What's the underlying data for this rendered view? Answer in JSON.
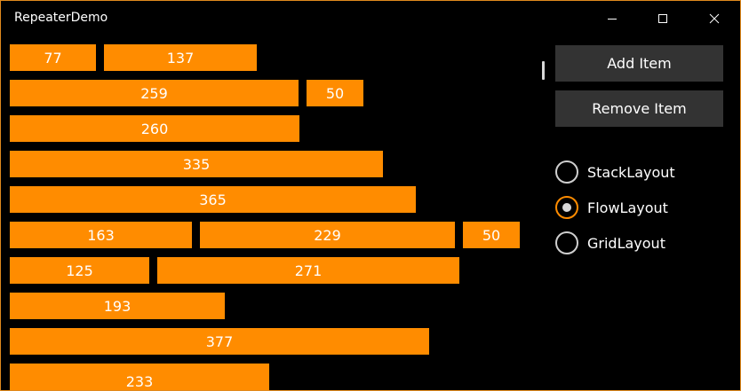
{
  "window": {
    "title": "RepeaterDemo",
    "border_color": "#e08a1e"
  },
  "caption_buttons": {
    "minimize_icon": "minimize-icon",
    "maximize_icon": "maximize-icon",
    "close_icon": "close-icon"
  },
  "items": [
    {
      "value": "77"
    },
    {
      "value": "137"
    },
    {
      "value": "259"
    },
    {
      "value": "50"
    },
    {
      "value": "260"
    },
    {
      "value": "335"
    },
    {
      "value": "365"
    },
    {
      "value": "163"
    },
    {
      "value": "229"
    },
    {
      "value": "50"
    },
    {
      "value": "125"
    },
    {
      "value": "271"
    },
    {
      "value": "193"
    },
    {
      "value": "377"
    },
    {
      "value": "233"
    }
  ],
  "item_color": "#ff8c00",
  "actions": {
    "add_label": "Add Item",
    "remove_label": "Remove Item"
  },
  "layouts": {
    "selected": "FlowLayout",
    "options": [
      {
        "label": "StackLayout",
        "checked": false
      },
      {
        "label": "FlowLayout",
        "checked": true
      },
      {
        "label": "GridLayout",
        "checked": false
      }
    ]
  }
}
